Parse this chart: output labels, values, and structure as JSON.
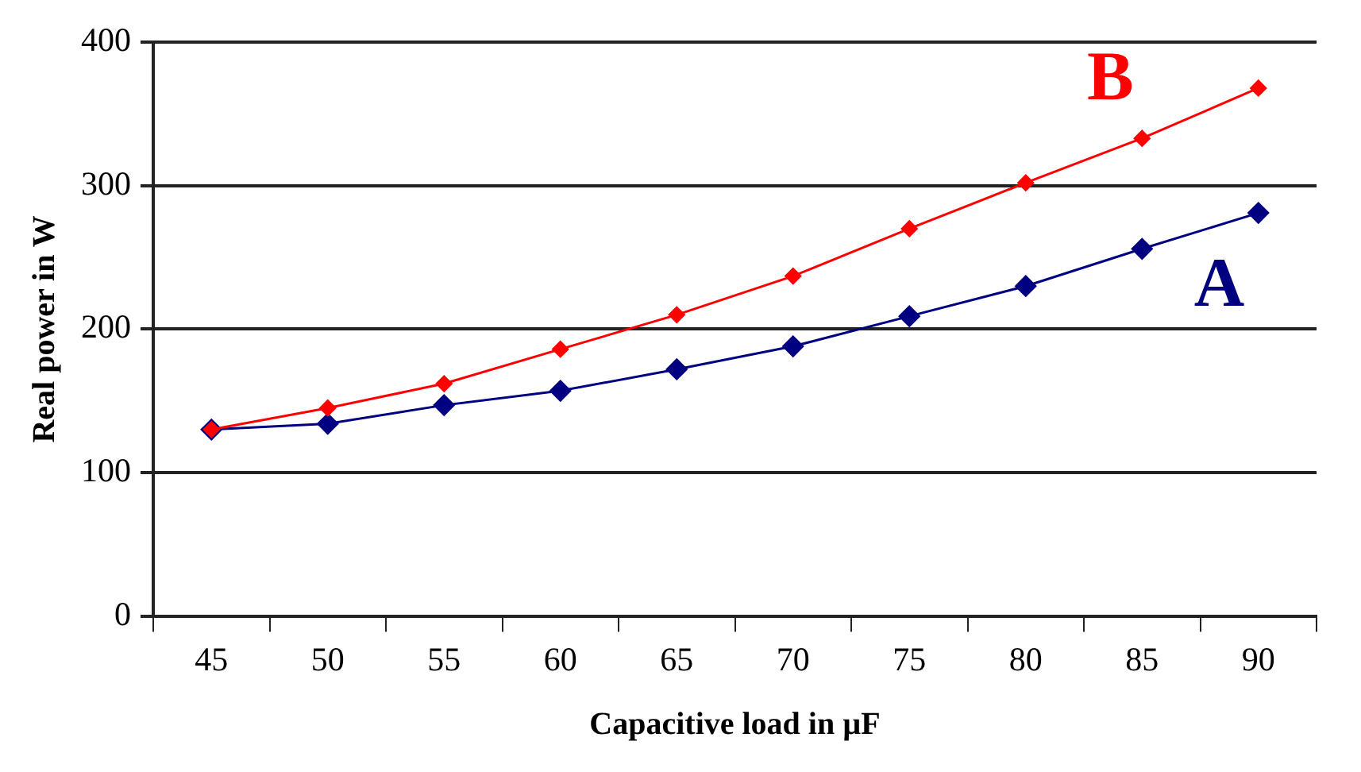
{
  "chart_data": {
    "type": "line",
    "xlabel": "Capacitive load in µF",
    "ylabel": "Real power in W",
    "categories": [
      "45",
      "50",
      "55",
      "60",
      "65",
      "70",
      "75",
      "80",
      "85",
      "90"
    ],
    "series": [
      {
        "name": "A",
        "color": "#000080",
        "values": [
          130,
          134,
          147,
          157,
          172,
          188,
          209,
          230,
          256,
          281
        ]
      },
      {
        "name": "B",
        "color": "#ff0000",
        "values": [
          130,
          145,
          162,
          186,
          210,
          237,
          270,
          302,
          333,
          368
        ]
      }
    ],
    "ylim": [
      0,
      400
    ],
    "yticks": [
      0,
      100,
      200,
      300,
      400
    ],
    "grid": "y",
    "legend": false,
    "marker": "diamond",
    "line_style": "solid"
  }
}
